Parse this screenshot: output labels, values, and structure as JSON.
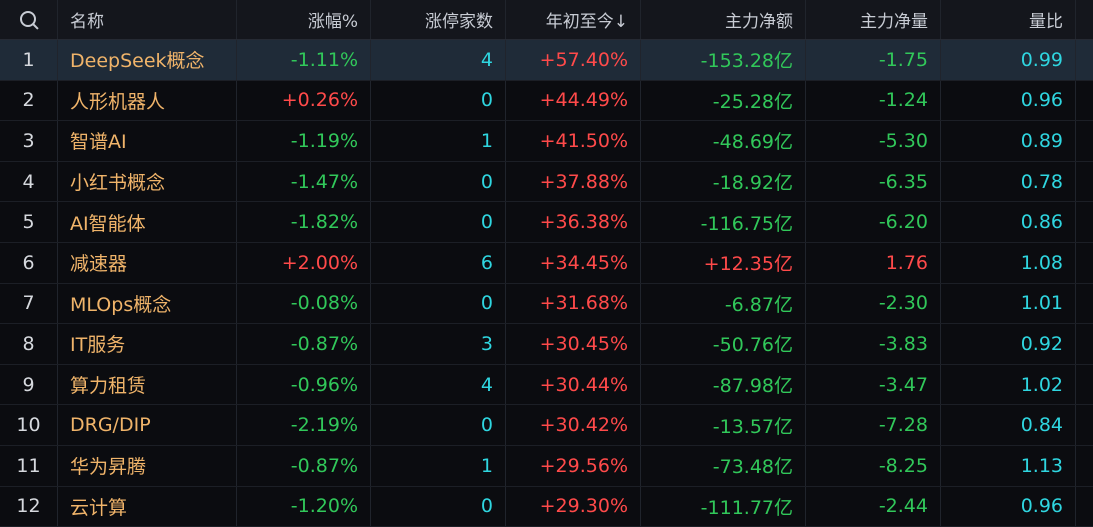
{
  "headers": {
    "name": "名称",
    "change": "涨幅%",
    "limit_up": "涨停家数",
    "ytd": "年初至今↓",
    "main_net_amount": "主力净额",
    "main_net_volume": "主力净量",
    "volume_ratio": "量比"
  },
  "rows": [
    {
      "idx": "1",
      "name": "DeepSeek概念",
      "change": "-1.11%",
      "limit_up": "4",
      "ytd": "+57.40%",
      "amount": "-153.28亿",
      "volume": "-1.75",
      "ratio": "0.99"
    },
    {
      "idx": "2",
      "name": "人形机器人",
      "change": "+0.26%",
      "limit_up": "0",
      "ytd": "+44.49%",
      "amount": "-25.28亿",
      "volume": "-1.24",
      "ratio": "0.96"
    },
    {
      "idx": "3",
      "name": "智谱AI",
      "change": "-1.19%",
      "limit_up": "1",
      "ytd": "+41.50%",
      "amount": "-48.69亿",
      "volume": "-5.30",
      "ratio": "0.89"
    },
    {
      "idx": "4",
      "name": "小红书概念",
      "change": "-1.47%",
      "limit_up": "0",
      "ytd": "+37.88%",
      "amount": "-18.92亿",
      "volume": "-6.35",
      "ratio": "0.78"
    },
    {
      "idx": "5",
      "name": "AI智能体",
      "change": "-1.82%",
      "limit_up": "0",
      "ytd": "+36.38%",
      "amount": "-116.75亿",
      "volume": "-6.20",
      "ratio": "0.86"
    },
    {
      "idx": "6",
      "name": "减速器",
      "change": "+2.00%",
      "limit_up": "6",
      "ytd": "+34.45%",
      "amount": "+12.35亿",
      "volume": "1.76",
      "ratio": "1.08"
    },
    {
      "idx": "7",
      "name": "MLOps概念",
      "change": "-0.08%",
      "limit_up": "0",
      "ytd": "+31.68%",
      "amount": "-6.87亿",
      "volume": "-2.30",
      "ratio": "1.01"
    },
    {
      "idx": "8",
      "name": "IT服务",
      "change": "-0.87%",
      "limit_up": "3",
      "ytd": "+30.45%",
      "amount": "-50.76亿",
      "volume": "-3.83",
      "ratio": "0.92"
    },
    {
      "idx": "9",
      "name": "算力租赁",
      "change": "-0.96%",
      "limit_up": "4",
      "ytd": "+30.44%",
      "amount": "-87.98亿",
      "volume": "-3.47",
      "ratio": "1.02"
    },
    {
      "idx": "10",
      "name": "DRG/DIP",
      "change": "-2.19%",
      "limit_up": "0",
      "ytd": "+30.42%",
      "amount": "-13.57亿",
      "volume": "-7.28",
      "ratio": "0.84"
    },
    {
      "idx": "11",
      "name": "华为昇腾",
      "change": "-0.87%",
      "limit_up": "1",
      "ytd": "+29.56%",
      "amount": "-73.48亿",
      "volume": "-8.25",
      "ratio": "1.13"
    },
    {
      "idx": "12",
      "name": "云计算",
      "change": "-1.20%",
      "limit_up": "0",
      "ytd": "+29.30%",
      "amount": "-111.77亿",
      "volume": "-2.44",
      "ratio": "0.96"
    }
  ],
  "colors": {
    "positive": "#ff4a4a",
    "negative": "#31c85a",
    "neutral_count": "#2fd6e0",
    "name": "#f0b46a",
    "selected_row_bg": "#1f2b38"
  },
  "selected_row": 0
}
